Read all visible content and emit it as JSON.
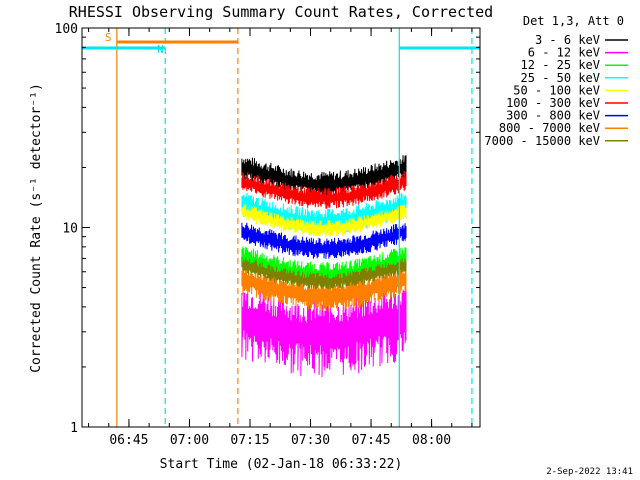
{
  "chart_data": {
    "type": "line",
    "title": "RHESSI Observing Summary Count Rates, Corrected",
    "xlabel": "Start Time (02-Jan-18 06:33:22)",
    "ylabel": "Corrected Count Rate (s⁻¹ detector⁻¹)",
    "yscale": "log",
    "ylim": [
      1,
      100
    ],
    "xlim": [
      "06:33:22",
      "08:12:00"
    ],
    "y_ticks": [
      "1",
      "10",
      "100"
    ],
    "x_ticks": [
      "06:45",
      "07:00",
      "07:15",
      "07:30",
      "07:45",
      "08:00"
    ],
    "legend_title": "Det 1,3, Att 0",
    "legend_position": "right",
    "series": [
      {
        "name": "3 - 6 keV",
        "color": "#000000",
        "level": 20,
        "jitter": 0.12
      },
      {
        "name": "6 - 12 keV",
        "color": "#ff00ff",
        "level": 3.5,
        "jitter": 0.35
      },
      {
        "name": "12 - 25 keV",
        "color": "#00ff00",
        "level": 7,
        "jitter": 0.12
      },
      {
        "name": "25 - 50 keV",
        "color": "#00ffff",
        "level": 13,
        "jitter": 0.12
      },
      {
        "name": "50 - 100 keV",
        "color": "#ffff00",
        "level": 12,
        "jitter": 0.08
      },
      {
        "name": "100 - 300 keV",
        "color": "#ff0000",
        "level": 17,
        "jitter": 0.1
      },
      {
        "name": "300 - 800 keV",
        "color": "#0000ff",
        "level": 9.5,
        "jitter": 0.1
      },
      {
        "name": "800 - 7000 keV",
        "color": "#ff8000",
        "level": 5.5,
        "jitter": 0.15
      },
      {
        "name": "7000 - 15000 keV",
        "color": "#808000",
        "level": 6.5,
        "jitter": 0.08
      }
    ],
    "data_start": "07:13:00",
    "data_end": "07:53:40",
    "flags": [
      {
        "label": "S",
        "color": "#ff8000",
        "start": "06:42:00",
        "end": "07:12:00"
      },
      {
        "label": "N",
        "color": "#00e5ee",
        "start": "06:33:22",
        "end": "06:54:00"
      },
      {
        "label": "",
        "color": "#00e5ee",
        "start": "07:52:00",
        "end": "08:12:00"
      }
    ],
    "markers": [
      {
        "time": "06:42:00",
        "color": "#ff8000",
        "style": "solid"
      },
      {
        "time": "06:54:00",
        "color": "#00e5ee",
        "style": "dashed"
      },
      {
        "time": "07:12:00",
        "color": "#ff8000",
        "style": "dashed"
      },
      {
        "time": "07:52:00",
        "color": "#00e5ee",
        "style": "solid"
      },
      {
        "time": "08:10:00",
        "color": "#00e5ee",
        "style": "dashed"
      }
    ]
  },
  "footer": {
    "timestamp": "2-Sep-2022 13:41"
  }
}
